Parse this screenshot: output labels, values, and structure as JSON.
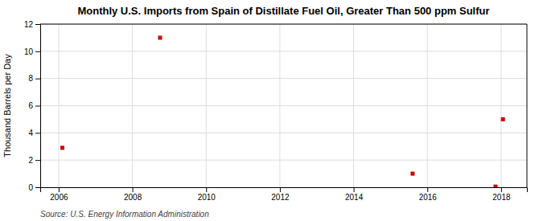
{
  "chart_data": {
    "type": "scatter",
    "title": "Monthly U.S. Imports from Spain of Distillate Fuel Oil, Greater Than 500 ppm Sulfur",
    "ylabel": "Thousand Barrels per Day",
    "source": "Source: U.S. Energy Information Administration",
    "x": [
      2006.1,
      2008.75,
      2015.6,
      2017.85,
      2018.05
    ],
    "values": [
      2.9,
      11.0,
      1.0,
      0.05,
      5.0
    ],
    "color": "#cc0000",
    "marker": "square",
    "xlim": [
      2005.5,
      2018.7
    ],
    "ylim": [
      0,
      12
    ],
    "xticks": [
      2006,
      2008,
      2010,
      2012,
      2014,
      2016,
      2018
    ],
    "yticks": [
      0,
      2,
      4,
      6,
      8,
      10,
      12
    ],
    "grid": true
  }
}
